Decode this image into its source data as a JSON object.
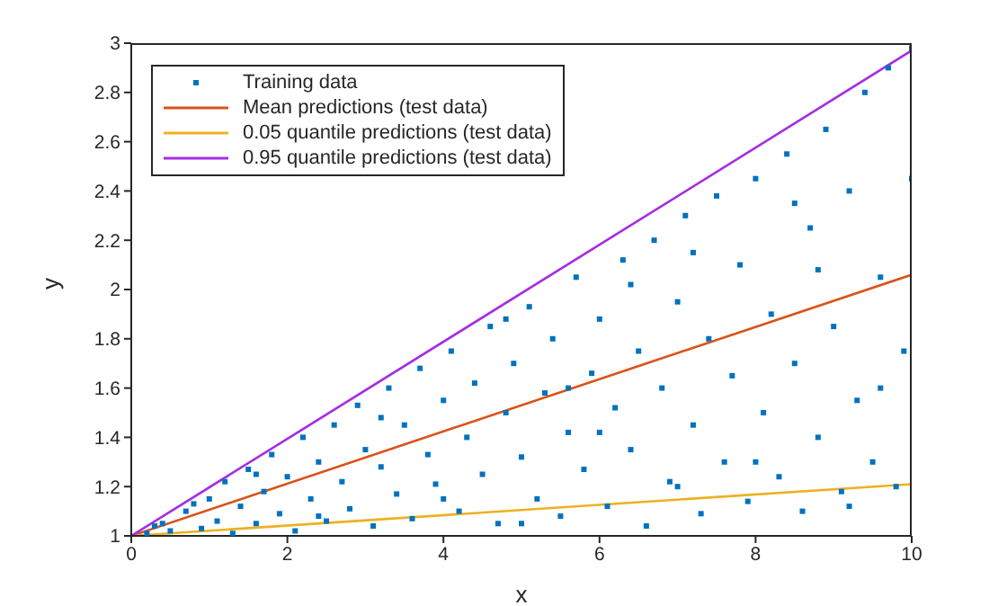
{
  "chart_data": {
    "type": "scatter",
    "xlabel": "x",
    "ylabel": "y",
    "xlim": [
      0,
      10
    ],
    "ylim": [
      1,
      3
    ],
    "xticks": [
      0,
      2,
      4,
      6,
      8,
      10
    ],
    "yticks": [
      1,
      1.2,
      1.4,
      1.6,
      1.8,
      2,
      2.2,
      2.4,
      2.6,
      2.8,
      3
    ],
    "legend": "top left",
    "series": [
      {
        "name": "Training data",
        "marker": "square",
        "color": "#0072bd",
        "x": [
          0.2,
          0.4,
          0.5,
          0.7,
          0.9,
          1.0,
          1.1,
          1.2,
          1.3,
          1.4,
          1.5,
          1.6,
          1.7,
          1.8,
          1.9,
          2.0,
          2.1,
          2.2,
          2.3,
          2.4,
          2.5,
          2.6,
          2.7,
          2.8,
          2.9,
          3.0,
          3.1,
          3.2,
          3.3,
          3.4,
          3.5,
          3.6,
          3.7,
          3.8,
          3.9,
          4.0,
          4.1,
          4.2,
          4.3,
          4.4,
          4.5,
          4.6,
          4.7,
          4.8,
          4.9,
          5.0,
          5.1,
          5.2,
          5.3,
          5.4,
          5.5,
          5.6,
          5.7,
          5.8,
          5.9,
          6.0,
          6.1,
          6.2,
          6.3,
          6.4,
          6.5,
          6.6,
          6.7,
          6.8,
          6.9,
          7.0,
          7.1,
          7.2,
          7.3,
          7.4,
          7.5,
          7.6,
          7.7,
          7.8,
          7.9,
          8.0,
          8.1,
          8.2,
          8.3,
          8.4,
          8.5,
          8.6,
          8.7,
          8.8,
          8.9,
          9.0,
          9.1,
          9.2,
          9.3,
          9.4,
          9.5,
          9.6,
          9.7,
          9.8,
          9.9,
          10.0,
          10.0,
          0.3,
          0.8,
          1.6,
          2.4,
          3.2,
          4.0,
          4.8,
          5.6,
          6.4,
          7.2,
          8.0,
          8.8,
          9.6,
          5.0,
          6.0,
          7.0,
          8.5,
          9.2
        ],
        "values": [
          1.01,
          1.05,
          1.02,
          1.1,
          1.03,
          1.15,
          1.06,
          1.22,
          1.01,
          1.12,
          1.27,
          1.05,
          1.18,
          1.33,
          1.09,
          1.24,
          1.02,
          1.4,
          1.15,
          1.3,
          1.06,
          1.45,
          1.22,
          1.11,
          1.53,
          1.35,
          1.04,
          1.28,
          1.6,
          1.17,
          1.45,
          1.07,
          1.68,
          1.33,
          1.21,
          1.55,
          1.75,
          1.1,
          1.4,
          1.62,
          1.25,
          1.85,
          1.05,
          1.5,
          1.7,
          1.32,
          1.93,
          1.15,
          1.58,
          1.8,
          1.08,
          1.42,
          2.05,
          1.27,
          1.66,
          1.88,
          1.12,
          1.52,
          2.12,
          1.35,
          1.75,
          1.04,
          2.2,
          1.6,
          1.22,
          1.95,
          2.3,
          1.45,
          1.09,
          1.8,
          2.38,
          1.3,
          1.65,
          2.1,
          1.14,
          2.45,
          1.5,
          1.9,
          1.24,
          2.55,
          1.7,
          1.1,
          2.25,
          1.4,
          2.65,
          1.85,
          1.18,
          2.4,
          1.55,
          2.8,
          1.3,
          2.05,
          2.9,
          1.2,
          1.75,
          2.98,
          2.45,
          1.04,
          1.13,
          1.25,
          1.08,
          1.48,
          1.15,
          1.88,
          1.6,
          2.02,
          2.15,
          1.3,
          2.08,
          1.6,
          1.05,
          1.42,
          1.2,
          2.35,
          1.12
        ]
      },
      {
        "name": "Mean predictions (test data)",
        "type": "line",
        "color": "#d95319",
        "x": [
          0,
          10
        ],
        "values": [
          1,
          2.06
        ]
      },
      {
        "name": "0.05 quantile predictions (test data)",
        "type": "line",
        "color": "#edb120",
        "x": [
          0,
          10
        ],
        "values": [
          1,
          1.21
        ]
      },
      {
        "name": "0.95 quantile predictions (test data)",
        "type": "line",
        "color": "#a52de3",
        "x": [
          0,
          10
        ],
        "values": [
          1,
          2.97
        ]
      }
    ]
  }
}
